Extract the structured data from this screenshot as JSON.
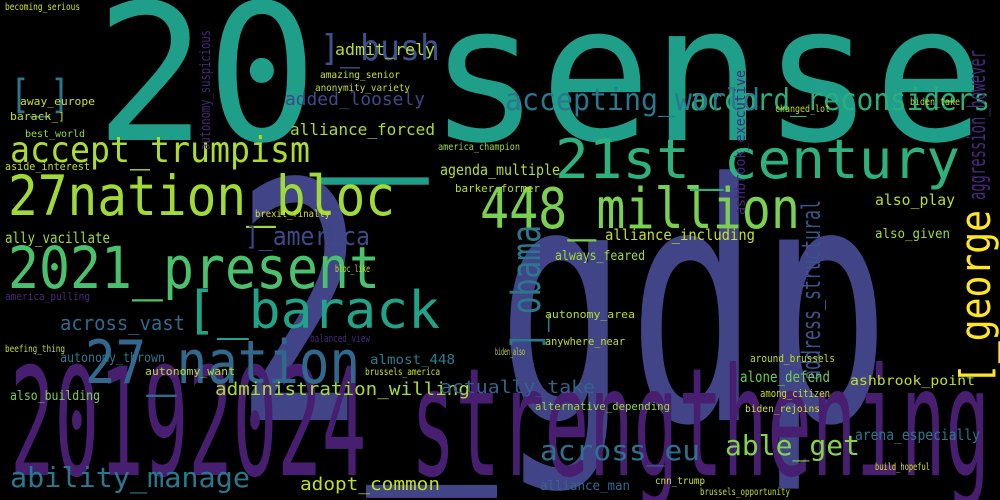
{
  "words": [
    "20_sense",
    "2_gdp",
    "20192024_strengthening",
    "27nation_bloc",
    "2021_present",
    "448_million",
    "21st_century",
    "27_nation",
    "[_barack",
    "accept_trumpism",
    "accord_reconsiders",
    "accepting_world",
    "]_bush",
    "[_]",
    "[_george",
    "]_obama",
    "address_structural",
    "aggression_however",
    "ability_manage",
    "able_get",
    "across_eu",
    "adopt_common",
    "administration_willing",
    "actually_take",
    "alliance_forced",
    "admit_rely",
    "added_loosely",
    "agenda_multiple",
    "]_america",
    "across_vast",
    "alliance_including",
    "always_feared",
    "also_play",
    "also_given",
    "alone_defend",
    "ashbrook_point",
    "arena_especially",
    "alliance_man",
    "almost_448",
    "also_building",
    "alternative_depending",
    "anywhere_near",
    "autonomy_area",
    "america_champion",
    "around_brussels",
    "among_citizen",
    "biden_rejoins",
    "barker_former",
    "amazing_senior",
    "anonymity_variety",
    "becoming_serious",
    "america_pulling",
    "aside_interest",
    "ally_vacillate",
    "away_europe",
    "barack_]",
    "best_world",
    "autonomy_thrown",
    "autonomy_want",
    "balanced_view",
    "brexit_finally",
    "bloc_like",
    "brussels_america",
    "beefing_thing",
    "biden_take",
    "changed_lot",
    "cnn_trump",
    "brussels_opportunity",
    "build_hopeful",
    "biden_also",
    "ashbrook_executive",
    "autonomy_suspicious"
  ]
}
